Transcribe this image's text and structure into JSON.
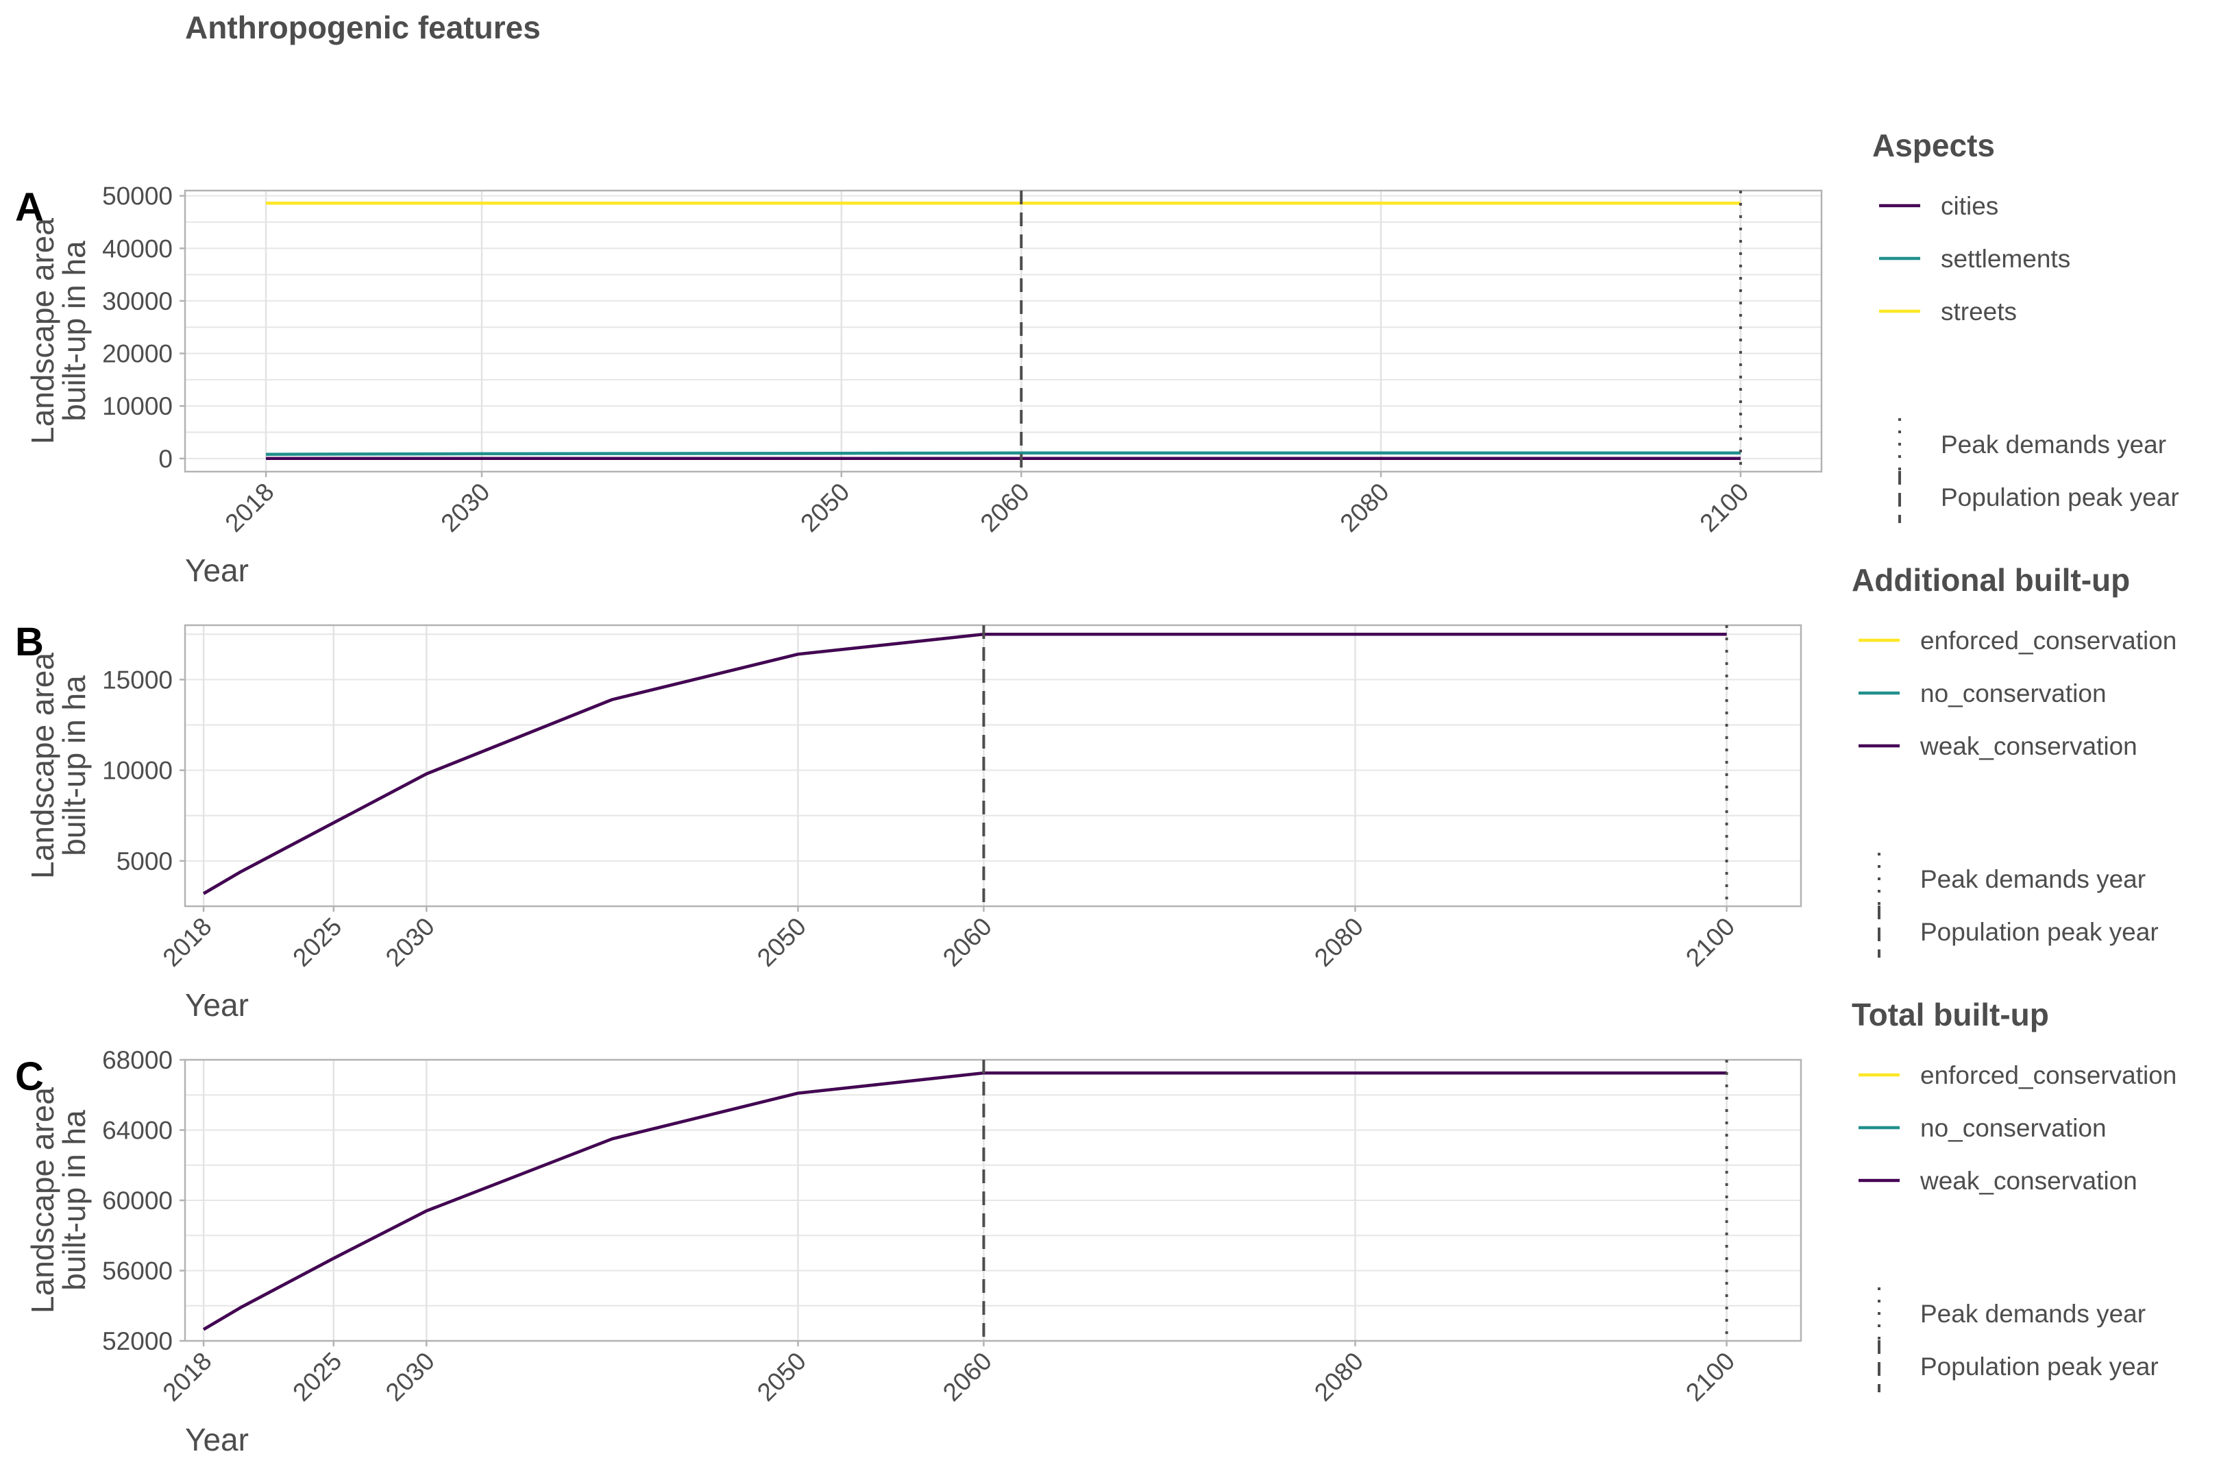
{
  "figure_title": "Anthropogenic features",
  "colors": {
    "cities": "#440154",
    "settlements": "#21908C",
    "streets": "#FDE725",
    "enforced_conservation": "#FDE725",
    "no_conservation": "#21908C",
    "weak_conservation": "#440154",
    "reference_line": "#4d4d4d"
  },
  "chart_data": [
    {
      "id": "A",
      "tag": "A",
      "type": "line",
      "title": "",
      "xlabel": "Year",
      "ylabel": [
        "Landscape area",
        "built-up in ha"
      ],
      "xlim": [
        2013.5,
        2104.5
      ],
      "ylim": [
        -2500,
        51000
      ],
      "xticks": [
        2018,
        2030,
        2050,
        2060,
        2080,
        2100
      ],
      "yticks": [
        0,
        10000,
        20000,
        30000,
        40000,
        50000
      ],
      "grid": true,
      "legend_title": "Aspects",
      "legend_position": "right",
      "series": [
        {
          "name": "cities",
          "x": [
            2018,
            2030,
            2040,
            2050,
            2060,
            2070,
            2080,
            2090,
            2100
          ],
          "y": [
            0,
            0,
            0,
            0,
            0,
            0,
            0,
            0,
            0
          ]
        },
        {
          "name": "settlements",
          "x": [
            2018,
            2030,
            2040,
            2050,
            2060,
            2070,
            2080,
            2090,
            2100
          ],
          "y": [
            800,
            900,
            950,
            1000,
            1050,
            1050,
            1050,
            1050,
            1050
          ]
        },
        {
          "name": "streets",
          "x": [
            2018,
            2030,
            2040,
            2050,
            2060,
            2070,
            2080,
            2090,
            2100
          ],
          "y": [
            48600,
            48600,
            48600,
            48600,
            48600,
            48600,
            48600,
            48600,
            48600
          ]
        }
      ],
      "vlines": [
        {
          "name": "Population peak year",
          "x": 2060,
          "style": "dashed"
        },
        {
          "name": "Peak demands year",
          "x": 2100,
          "style": "dotted"
        }
      ]
    },
    {
      "id": "B",
      "tag": "B",
      "type": "line",
      "title": "",
      "xlabel": "Year",
      "ylabel": [
        "Landscape area",
        "built-up in ha"
      ],
      "xlim": [
        2017.0,
        2104.0
      ],
      "ylim": [
        2500,
        18000
      ],
      "xticks": [
        2018,
        2025,
        2030,
        2050,
        2060,
        2080,
        2100
      ],
      "yticks": [
        5000,
        10000,
        15000
      ],
      "grid": true,
      "legend_title": "Additional built-up",
      "legend_position": "right",
      "series": [
        {
          "name": "enforced_conservation",
          "x": [
            2018,
            2020,
            2025,
            2030,
            2040,
            2050,
            2060,
            2070,
            2080,
            2090,
            2100
          ],
          "y": [
            3200,
            4400,
            7100,
            9800,
            13900,
            16400,
            17500,
            17500,
            17500,
            17500,
            17500
          ]
        },
        {
          "name": "no_conservation",
          "x": [
            2018,
            2020,
            2025,
            2030,
            2040,
            2050,
            2060,
            2070,
            2080,
            2090,
            2100
          ],
          "y": [
            3200,
            4400,
            7100,
            9800,
            13900,
            16400,
            17500,
            17500,
            17500,
            17500,
            17500
          ]
        },
        {
          "name": "weak_conservation",
          "x": [
            2018,
            2020,
            2025,
            2030,
            2040,
            2050,
            2060,
            2070,
            2080,
            2090,
            2100
          ],
          "y": [
            3200,
            4400,
            7100,
            9800,
            13900,
            16400,
            17500,
            17500,
            17500,
            17500,
            17500
          ]
        }
      ],
      "vlines": [
        {
          "name": "Population peak year",
          "x": 2060,
          "style": "dashed"
        },
        {
          "name": "Peak demands year",
          "x": 2100,
          "style": "dotted"
        }
      ]
    },
    {
      "id": "C",
      "tag": "C",
      "type": "line",
      "title": "",
      "xlabel": "Year",
      "ylabel": [
        "Landscape area",
        "built-up in ha"
      ],
      "xlim": [
        2017.0,
        2104.0
      ],
      "ylim": [
        52000,
        68000
      ],
      "xticks": [
        2018,
        2025,
        2030,
        2050,
        2060,
        2080,
        2100
      ],
      "yticks": [
        52000,
        56000,
        60000,
        64000,
        68000
      ],
      "grid": true,
      "legend_title": "Total built-up",
      "legend_position": "right",
      "series": [
        {
          "name": "enforced_conservation",
          "x": [
            2018,
            2020,
            2025,
            2030,
            2040,
            2050,
            2060,
            2070,
            2080,
            2090,
            2100
          ],
          "y": [
            52650,
            53900,
            56700,
            59400,
            63500,
            66100,
            67250,
            67250,
            67250,
            67250,
            67250
          ]
        },
        {
          "name": "no_conservation",
          "x": [
            2018,
            2020,
            2025,
            2030,
            2040,
            2050,
            2060,
            2070,
            2080,
            2090,
            2100
          ],
          "y": [
            52650,
            53900,
            56700,
            59400,
            63500,
            66100,
            67250,
            67250,
            67250,
            67250,
            67250
          ]
        },
        {
          "name": "weak_conservation",
          "x": [
            2018,
            2020,
            2025,
            2030,
            2040,
            2050,
            2060,
            2070,
            2080,
            2090,
            2100
          ],
          "y": [
            52650,
            53900,
            56700,
            59400,
            63500,
            66100,
            67250,
            67250,
            67250,
            67250,
            67250
          ]
        }
      ],
      "vlines": [
        {
          "name": "Population peak year",
          "x": 2060,
          "style": "dashed"
        },
        {
          "name": "Peak demands year",
          "x": 2100,
          "style": "dotted"
        }
      ]
    }
  ],
  "vline_legend": [
    {
      "label": "Peak demands year",
      "style": "dotted"
    },
    {
      "label": "Population peak year",
      "style": "dashed"
    }
  ]
}
